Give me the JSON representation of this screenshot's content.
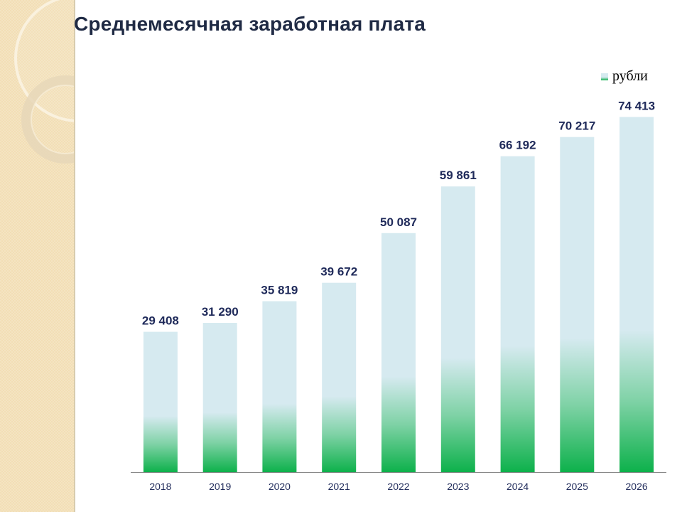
{
  "slide": {
    "title": "Среднемесячная заработная плата"
  },
  "colors": {
    "bar_top": "#d6eaf0",
    "bar_bottom": "#0db14b",
    "label_text": "#1f2a5a",
    "axis": "#888888"
  },
  "chart_data": {
    "type": "bar",
    "title": "Среднемесячная заработная плата",
    "xlabel": "",
    "ylabel": "",
    "ylim": [
      0,
      80000
    ],
    "grid": false,
    "legend_position": "top-right",
    "categories": [
      "2018",
      "2019",
      "2020",
      "2021",
      "2022",
      "2023",
      "2024",
      "2025",
      "2026"
    ],
    "series": [
      {
        "name": "рубли",
        "values": [
          29408,
          31290,
          35819,
          39672,
          50087,
          59861,
          66192,
          70217,
          74413
        ],
        "labels": [
          "29 408",
          "31 290",
          "35 819",
          "39 672",
          "50 087",
          "59 861",
          "66 192",
          "70 217",
          "74 413"
        ]
      }
    ]
  }
}
